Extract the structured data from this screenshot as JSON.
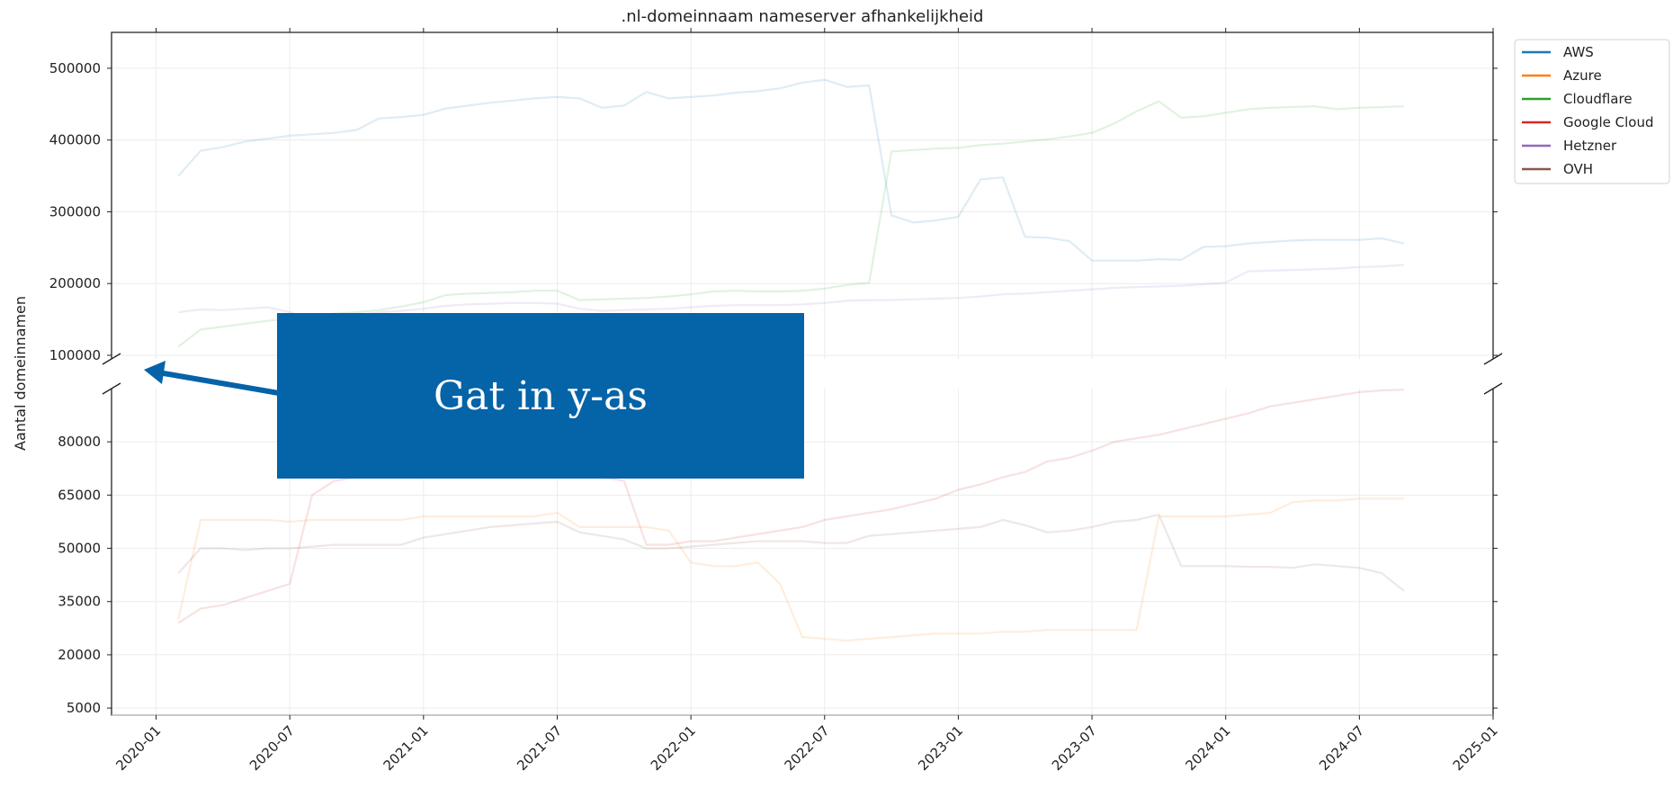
{
  "chart_data": {
    "type": "line",
    "title": ".nl-domeinnaam nameserver afhankelijkheid",
    "xlabel": "",
    "ylabel": "Aantal domeinnamen",
    "x_ticks": [
      "2020-01",
      "2020-07",
      "2021-01",
      "2021-07",
      "2022-01",
      "2022-07",
      "2023-01",
      "2023-07",
      "2024-01",
      "2024-07",
      "2025-01"
    ],
    "xlim": [
      "2019-11",
      "2025-01"
    ],
    "y_axis_break": true,
    "ylim_upper": [
      95000,
      550000
    ],
    "ylim_lower": [
      3000,
      95000
    ],
    "y_ticks_upper": [
      100000,
      200000,
      300000,
      400000,
      500000
    ],
    "y_ticks_lower": [
      5000,
      20000,
      35000,
      50000,
      65000,
      80000
    ],
    "y_tick_labels_upper": [
      "100000",
      "200000",
      "300000",
      "400000",
      "500000"
    ],
    "y_tick_labels_lower": [
      "5000",
      "20000",
      "35000",
      "50000",
      "65000",
      "80000"
    ],
    "grid": true,
    "legend_position": "outside-top-right",
    "x": [
      "2020-02",
      "2020-03",
      "2020-04",
      "2020-05",
      "2020-06",
      "2020-07",
      "2020-08",
      "2020-09",
      "2020-10",
      "2020-11",
      "2020-12",
      "2021-01",
      "2021-02",
      "2021-03",
      "2021-04",
      "2021-05",
      "2021-06",
      "2021-07",
      "2021-08",
      "2021-09",
      "2021-10",
      "2021-11",
      "2021-12",
      "2022-01",
      "2022-02",
      "2022-03",
      "2022-04",
      "2022-05",
      "2022-06",
      "2022-07",
      "2022-08",
      "2022-09",
      "2022-10",
      "2022-11",
      "2022-12",
      "2023-01",
      "2023-02",
      "2023-03",
      "2023-04",
      "2023-05",
      "2023-06",
      "2023-07",
      "2023-08",
      "2023-09",
      "2023-10",
      "2023-11",
      "2023-12",
      "2024-01",
      "2024-02",
      "2024-03",
      "2024-04",
      "2024-05",
      "2024-06",
      "2024-07",
      "2024-08",
      "2024-09"
    ],
    "series": [
      {
        "name": "AWS",
        "color": "#1f77b4",
        "values": [
          350000,
          385000,
          390000,
          398000,
          402000,
          406000,
          408000,
          410000,
          414000,
          430000,
          432000,
          435000,
          444000,
          448000,
          452000,
          455000,
          458000,
          460000,
          458000,
          445000,
          448000,
          467000,
          458000,
          460000,
          462000,
          466000,
          468000,
          472000,
          480000,
          484000,
          474000,
          476000,
          295000,
          285000,
          288000,
          293000,
          345000,
          348000,
          265000,
          264000,
          259000,
          232000,
          232000,
          232000,
          234000,
          233000,
          251000,
          252000,
          256000,
          258000,
          260000,
          261000,
          261000,
          261000,
          263000,
          256000
        ]
      },
      {
        "name": "Azure",
        "color": "#ff7f0e",
        "values": [
          30000,
          58000,
          58000,
          58000,
          58000,
          57500,
          58000,
          58000,
          58000,
          58000,
          58000,
          59000,
          59000,
          59000,
          59000,
          59000,
          59000,
          60000,
          56000,
          56000,
          56000,
          56000,
          55000,
          46000,
          45000,
          45000,
          46000,
          40000,
          25000,
          24500,
          24000,
          24500,
          25000,
          25500,
          26000,
          26000,
          26000,
          26500,
          26500,
          27000,
          27000,
          27000,
          27000,
          27000,
          59000,
          59000,
          59000,
          59000,
          59500,
          60000,
          63000,
          63500,
          63500,
          64000,
          64000,
          64000
        ]
      },
      {
        "name": "Cloudflare",
        "color": "#2ca02c",
        "values": [
          112000,
          136000,
          140000,
          144000,
          148000,
          151000,
          154000,
          158000,
          160000,
          163000,
          168000,
          174000,
          184000,
          186000,
          187000,
          188000,
          190000,
          190000,
          177000,
          178000,
          179000,
          180000,
          182000,
          185000,
          189000,
          190000,
          189000,
          189000,
          190000,
          193000,
          198000,
          201000,
          384000,
          386000,
          388000,
          389000,
          393000,
          395000,
          398000,
          401000,
          405000,
          410000,
          423000,
          440000,
          454000,
          431000,
          433000,
          438000,
          443000,
          445000,
          446000,
          447000,
          443000,
          445000,
          446000,
          447000
        ]
      },
      {
        "name": "Google Cloud",
        "color": "#d62728",
        "values": [
          29000,
          33000,
          34000,
          36000,
          38000,
          40000,
          65000,
          69000,
          70000,
          71000,
          73000,
          74000,
          74000,
          74000,
          74000,
          74000,
          74000,
          74000,
          71000,
          70000,
          69000,
          51000,
          51000,
          52000,
          52000,
          53000,
          54000,
          55000,
          56000,
          58000,
          59000,
          60000,
          61000,
          62500,
          64000,
          66500,
          68000,
          70000,
          71500,
          74500,
          75500,
          77500,
          80000,
          81000,
          82000,
          83500,
          85000,
          86500,
          88000,
          90000,
          91000,
          92000,
          93000,
          94000,
          94500,
          94700
        ]
      },
      {
        "name": "Hetzner",
        "color": "#9467bd",
        "values": [
          160000,
          164000,
          163000,
          165000,
          167000,
          160000,
          150000,
          152000,
          156000,
          160000,
          162000,
          165000,
          169000,
          171000,
          172000,
          173000,
          173000,
          172000,
          165000,
          162000,
          163000,
          164000,
          165000,
          167000,
          169000,
          170000,
          170000,
          170000,
          171000,
          173000,
          176000,
          177000,
          177000,
          178000,
          179000,
          180000,
          182000,
          185000,
          186000,
          188000,
          190000,
          192000,
          194000,
          195000,
          196000,
          197000,
          199000,
          201000,
          217000,
          218000,
          219000,
          220000,
          221000,
          223000,
          224000,
          226000
        ]
      },
      {
        "name": "OVH",
        "color": "#8c564b",
        "values": [
          43000,
          50000,
          50000,
          49500,
          50000,
          50000,
          50500,
          51000,
          51000,
          51000,
          51000,
          53000,
          54000,
          55000,
          56000,
          56500,
          57000,
          57500,
          54500,
          53500,
          52500,
          50000,
          50000,
          50500,
          51000,
          51500,
          52000,
          52000,
          52000,
          51500,
          51500,
          53500,
          54000,
          54500,
          55000,
          55500,
          56000,
          58000,
          56500,
          54500,
          55000,
          56000,
          57500,
          58000,
          59500,
          45000,
          45000,
          45000,
          44800,
          44800,
          44500,
          45500,
          45000,
          44500,
          43000,
          38000
        ]
      }
    ],
    "annotations": [
      {
        "text": "Gat in y-as",
        "kind": "callout-arrow",
        "points_to": "y-axis break"
      }
    ]
  }
}
